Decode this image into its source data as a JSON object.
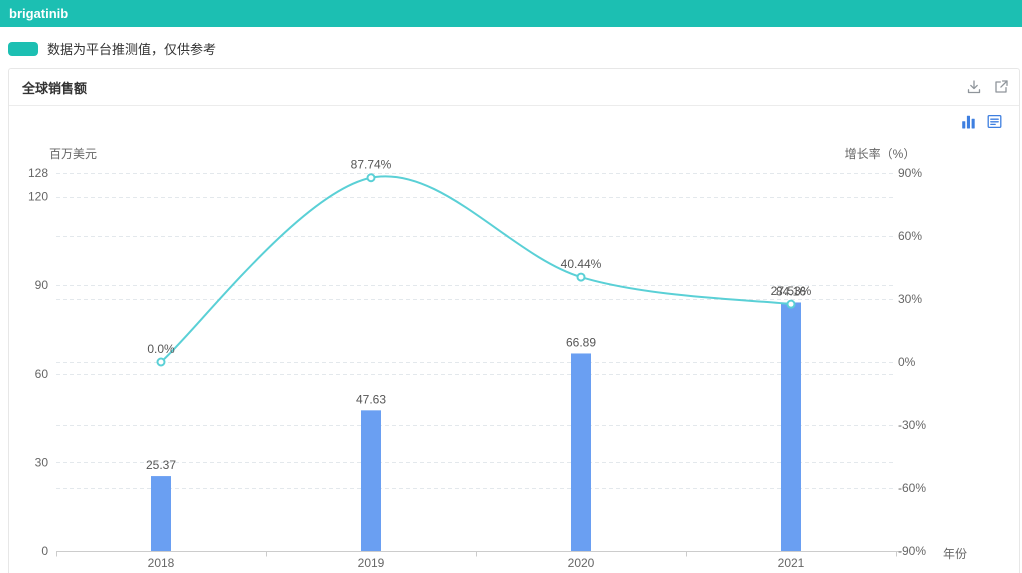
{
  "topbar": {
    "title": "brigatinib"
  },
  "note": {
    "text": "数据为平台推测值，仅供参考"
  },
  "panel": {
    "title": "全球销售额"
  },
  "colors": {
    "accent_teal": "#1cbfb2",
    "line": "#5ad0d6",
    "bar": "#6a9ff2",
    "grid": "#e3e8ec",
    "axis": "#cccccc",
    "tick_text": "#666666",
    "label_text": "#565656",
    "toolbox_blue": "#3e7fe0",
    "header_icon_gray": "#8f959b"
  },
  "chart_data": {
    "type": "combo-bar-line-dual-axis",
    "categories": [
      "2018",
      "2019",
      "2020",
      "2021"
    ],
    "series": [
      {
        "name": "全球销售额",
        "type": "bar",
        "axis": "left",
        "values": [
          25.37,
          47.63,
          66.89,
          84.16
        ],
        "labels": [
          "25.37",
          "47.63",
          "66.89",
          "84.16"
        ]
      },
      {
        "name": "增长率",
        "type": "line",
        "axis": "right",
        "values": [
          0.0,
          87.74,
          40.44,
          27.53
        ],
        "labels": [
          "0.0%",
          "87.74%",
          "40.44%",
          "27.53%"
        ]
      }
    ],
    "left_axis": {
      "name": "百万美元",
      "ticks": [
        0,
        30,
        60,
        90,
        120,
        128
      ],
      "min": 0,
      "max": 128
    },
    "right_axis": {
      "name": "增长率（%）",
      "ticks": [
        90,
        60,
        30,
        0,
        -30,
        -60,
        -90
      ],
      "min": -90,
      "max": 90,
      "suffix": "%"
    },
    "x_axis": {
      "name": "年份"
    },
    "grid": "dashed",
    "legend_position": "none"
  }
}
